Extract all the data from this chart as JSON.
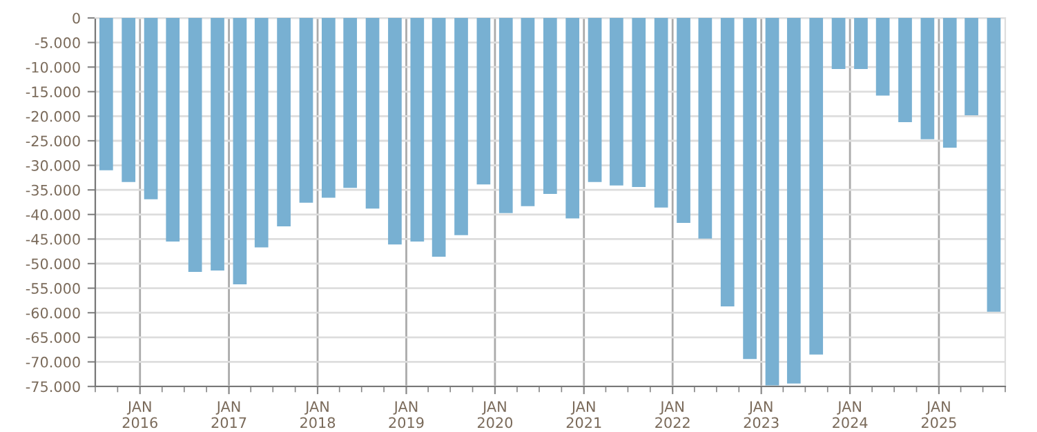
{
  "chart_data": {
    "type": "bar",
    "x": [
      "2015-08-15",
      "2015-11-15",
      "2016-02-15",
      "2016-05-15",
      "2016-08-15",
      "2016-11-15",
      "2017-02-15",
      "2017-05-15",
      "2017-08-15",
      "2017-11-15",
      "2018-02-15",
      "2018-05-15",
      "2018-08-15",
      "2018-11-15",
      "2019-02-15",
      "2019-05-15",
      "2019-08-15",
      "2019-11-15",
      "2020-02-15",
      "2020-05-15",
      "2020-08-15",
      "2020-11-15",
      "2021-02-15",
      "2021-05-15",
      "2021-08-15",
      "2021-11-15",
      "2022-02-15",
      "2022-05-15",
      "2022-08-15",
      "2022-11-15",
      "2023-02-15",
      "2023-05-15",
      "2023-08-15",
      "2023-11-15",
      "2024-02-15",
      "2024-05-15",
      "2024-08-15",
      "2024-11-15",
      "2025-02-15",
      "2025-05-15",
      "2025-08-15"
    ],
    "values": [
      -31000,
      -33400,
      -36900,
      -45500,
      -51700,
      -51400,
      -54200,
      -46700,
      -42400,
      -37600,
      -36600,
      -34600,
      -38800,
      -46100,
      -45500,
      -48600,
      -44200,
      -33900,
      -39700,
      -38300,
      -35800,
      -40800,
      -33400,
      -34100,
      -34400,
      -38600,
      -41700,
      -44900,
      -58700,
      -69400,
      -74800,
      -74400,
      -68500,
      -10400,
      -10400,
      -15800,
      -21200,
      -24700,
      -26400,
      -19800,
      -59800
    ],
    "color": "#78b0d2",
    "ylim": [
      -75000,
      0
    ],
    "yticks": [
      {
        "value": -75000,
        "label": "-75.000"
      },
      {
        "value": -70000,
        "label": "-70.000"
      },
      {
        "value": -65000,
        "label": "-65.000"
      },
      {
        "value": -60000,
        "label": "-60.000"
      },
      {
        "value": -55000,
        "label": "-55.000"
      },
      {
        "value": -50000,
        "label": "-50.000"
      },
      {
        "value": -45000,
        "label": "-45.000"
      },
      {
        "value": -40000,
        "label": "-40.000"
      },
      {
        "value": -35000,
        "label": "-35.000"
      },
      {
        "value": -30000,
        "label": "-30.000"
      },
      {
        "value": -25000,
        "label": "-25.000"
      },
      {
        "value": -20000,
        "label": "-20.000"
      },
      {
        "value": -15000,
        "label": "-15.000"
      },
      {
        "value": -10000,
        "label": "-10.000"
      },
      {
        "value": -5000,
        "label": "-5.000"
      },
      0
    ],
    "xlim": [
      "2015-07-01",
      "2025-10-01"
    ],
    "xticks": [
      {
        "value": "2016-01-01",
        "label": "JAN\n2016"
      },
      {
        "value": "2017-01-01",
        "label": "JAN\n2017"
      },
      {
        "value": "2018-01-01",
        "label": "JAN\n2018"
      },
      {
        "value": "2019-01-01",
        "label": "JAN\n2019"
      },
      {
        "value": "2020-01-01",
        "label": "JAN\n2020"
      },
      {
        "value": "2021-01-01",
        "label": "JAN\n2021"
      },
      {
        "value": "2022-01-01",
        "label": "JAN\n2022"
      },
      {
        "value": "2023-01-01",
        "label": "JAN\n2023"
      },
      {
        "value": "2024-01-01",
        "label": "JAN\n2024"
      },
      {
        "value": "2025-01-01",
        "label": "JAN\n2025"
      }
    ],
    "grid": true
  }
}
